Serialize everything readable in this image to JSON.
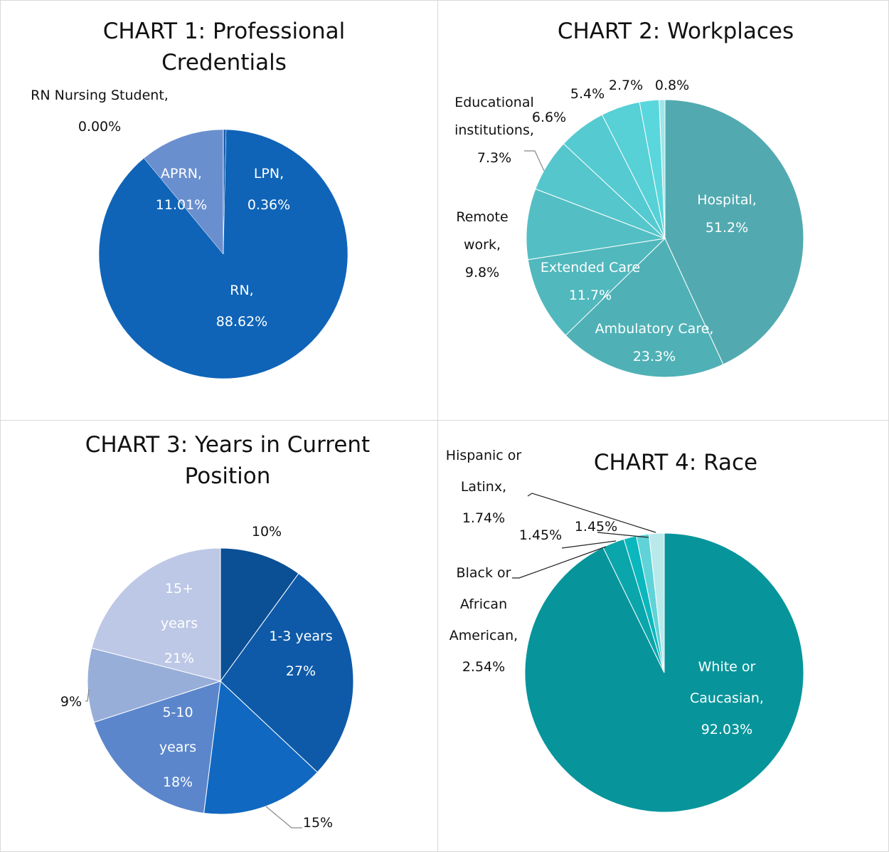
{
  "chart_data": [
    {
      "type": "pie",
      "title": "CHART 1: Professional Credentials",
      "categories": [
        "LPN,",
        "RN,",
        "APRN,",
        "RN Nursing Student,"
      ],
      "values": [
        0.36,
        88.62,
        11.01,
        0.0
      ],
      "value_labels": [
        "0.36%",
        "88.62%",
        "11.01%",
        "0.00%"
      ],
      "colors": [
        "#1a5aa6",
        "#0f64b8",
        "#6a8fcf",
        "#1a5aa6"
      ]
    },
    {
      "type": "pie",
      "title": "CHART 2: Workplaces",
      "categories": [
        "Hospital,",
        "Ambulatory Care,",
        "Extended Care",
        "Remote work,",
        "Educational institutions,",
        null,
        null,
        null,
        null
      ],
      "values": [
        51.2,
        23.3,
        11.7,
        9.8,
        7.3,
        6.6,
        5.4,
        2.7,
        0.8
      ],
      "value_labels": [
        "51.2%",
        "23.3%",
        "11.7%",
        "9.8%",
        "7.3%",
        "6.6%",
        "5.4%",
        "2.7%",
        "0.8%"
      ],
      "colors": [
        "#52aab0",
        "#4fb1b6",
        "#51b8bd",
        "#53bfc4",
        "#55c6cb",
        "#55cbd1",
        "#57d0d6",
        "#5ad7dc",
        "#9ee6e9"
      ]
    },
    {
      "type": "pie",
      "title": "CHART 3: Years in Current Position",
      "categories": [
        null,
        "1-3 years",
        null,
        "5-10 years",
        null,
        "15+ years"
      ],
      "values": [
        10,
        27,
        15,
        18,
        9,
        21
      ],
      "value_labels": [
        "10%",
        "27%",
        "15%",
        "18%",
        "9%",
        "21%"
      ],
      "colors": [
        "#0b4f94",
        "#0e5aa8",
        "#1168c0",
        "#5b86cc",
        "#97aed9",
        "#bdc8e6"
      ]
    },
    {
      "type": "pie",
      "title": "CHART 4: Race",
      "categories": [
        "White or Caucasian,",
        "Black or African American,",
        null,
        null,
        "Hispanic or Latinx,"
      ],
      "values": [
        92.03,
        2.54,
        1.45,
        1.45,
        1.74
      ],
      "value_labels": [
        "92.03%",
        "2.54%",
        "1.45%",
        "1.45%",
        "1.74%"
      ],
      "colors": [
        "#07959b",
        "#0aa6ab",
        "#0ab7bd",
        "#5fd3d8",
        "#b9e9eb"
      ]
    }
  ]
}
